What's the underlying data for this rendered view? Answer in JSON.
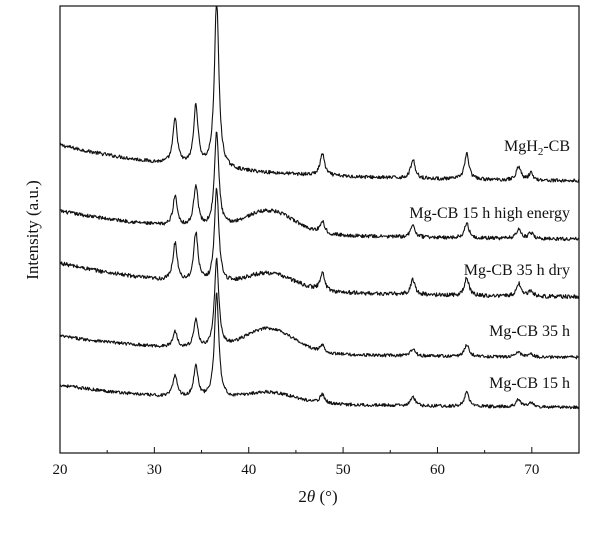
{
  "chart_data": {
    "type": "line",
    "xlabel_prefix": "2",
    "xlabel_symbol": "θ",
    "xlabel_unit": " (°)",
    "ylabel": "Intensity (a.u.)",
    "xlim": [
      20,
      75
    ],
    "xticks": [
      20,
      30,
      40,
      50,
      60,
      70
    ],
    "yticks_shown": false,
    "grid": false,
    "legend": "inline labels at right end of each trace",
    "series": [
      {
        "name": "MgH2-CB",
        "label_main": "MgH",
        "label_sub": "2",
        "label_tail": "-CB",
        "baseline_start": 0.4,
        "baseline_end": 0.03,
        "noise": 0.018,
        "broad_hump": 0.0,
        "peaks": [
          [
            32.2,
            0.45
          ],
          [
            34.4,
            0.6
          ],
          [
            36.6,
            1.7
          ],
          [
            47.8,
            0.22
          ],
          [
            57.4,
            0.19
          ],
          [
            63.1,
            0.26
          ],
          [
            68.6,
            0.14
          ],
          [
            69.9,
            0.07
          ]
        ]
      },
      {
        "name": "Mg-CB 15 h high energy",
        "label_main": "Mg-CB 15 h high energy",
        "label_sub": "",
        "label_tail": "",
        "baseline_start": 0.32,
        "baseline_end": 0.03,
        "noise": 0.018,
        "broad_hump": 0.22,
        "peaks": [
          [
            32.2,
            0.3
          ],
          [
            34.4,
            0.42
          ],
          [
            36.6,
            0.95
          ],
          [
            47.8,
            0.12
          ],
          [
            57.4,
            0.12
          ],
          [
            63.1,
            0.15
          ],
          [
            68.6,
            0.1
          ],
          [
            69.9,
            0.06
          ]
        ]
      },
      {
        "name": "Mg-CB 35 h dry",
        "label_main": "Mg-CB 35 h dry",
        "label_sub": "",
        "label_tail": "",
        "baseline_start": 0.38,
        "baseline_end": 0.03,
        "noise": 0.02,
        "broad_hump": 0.16,
        "peaks": [
          [
            32.2,
            0.38
          ],
          [
            34.4,
            0.5
          ],
          [
            36.6,
            0.95
          ],
          [
            47.8,
            0.18
          ],
          [
            57.4,
            0.15
          ],
          [
            63.1,
            0.18
          ],
          [
            68.6,
            0.13
          ],
          [
            69.9,
            0.06
          ]
        ]
      },
      {
        "name": "Mg-CB 35 h",
        "label_main": "Mg-CB 35 h",
        "label_sub": "",
        "label_tail": "",
        "baseline_start": 0.25,
        "baseline_end": 0.03,
        "noise": 0.016,
        "broad_hump": 0.24,
        "peaks": [
          [
            32.2,
            0.16
          ],
          [
            34.4,
            0.28
          ],
          [
            36.6,
            0.88
          ],
          [
            47.8,
            0.07
          ],
          [
            57.4,
            0.07
          ],
          [
            63.1,
            0.12
          ],
          [
            68.6,
            0.05
          ],
          [
            69.9,
            0.03
          ]
        ]
      },
      {
        "name": "Mg-CB 15 h",
        "label_main": "Mg-CB 15 h",
        "label_sub": "",
        "label_tail": "",
        "baseline_start": 0.25,
        "baseline_end": 0.02,
        "noise": 0.016,
        "broad_hump": 0.1,
        "peaks": [
          [
            32.2,
            0.22
          ],
          [
            34.4,
            0.32
          ],
          [
            36.6,
            1.05
          ],
          [
            47.8,
            0.09
          ],
          [
            57.4,
            0.09
          ],
          [
            63.1,
            0.14
          ],
          [
            68.6,
            0.08
          ],
          [
            69.9,
            0.04
          ]
        ]
      }
    ]
  }
}
